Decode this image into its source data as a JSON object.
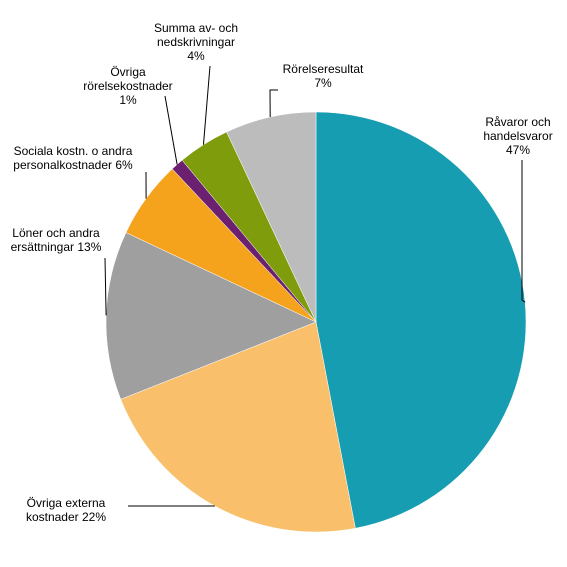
{
  "chart_data": {
    "type": "pie",
    "categories": [
      "Råvaror och handelsvaror",
      "Övriga externa kostnader",
      "Löner och andra ersättningar",
      "Sociala kostn. o andra personalkostnader",
      "Övriga rörelsekostnader",
      "Summa av- och nedskrivningar",
      "Rörelseresultat"
    ],
    "values": [
      47,
      22,
      13,
      6,
      1,
      4,
      7
    ],
    "value_labels": [
      "47%",
      "22%",
      "13%",
      "6%",
      "1%",
      "4%",
      "7%"
    ],
    "colors": [
      "#179db2",
      "#f9bf6a",
      "#9f9f9f",
      "#f5a31d",
      "#6b2170",
      "#7f9c0d",
      "#bcbcbc"
    ]
  }
}
